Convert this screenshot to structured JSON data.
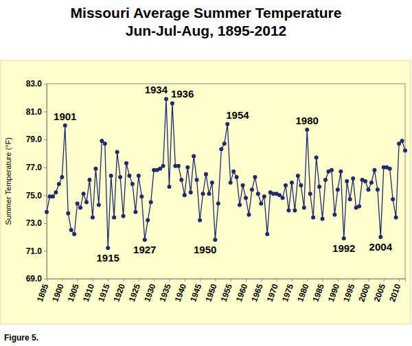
{
  "chart_data": {
    "type": "line",
    "title": "Missouri Average Summer Temperature",
    "subtitle": "Jun-Jul-Aug, 1895-2012",
    "y_label": "Summer Temperature (°F)",
    "caption": "Figure 5.",
    "color": "#1f2a6e",
    "marker": "circle",
    "grid": false,
    "xlim": [
      1895,
      2012
    ],
    "ylim": [
      69,
      83
    ],
    "xticks": [
      1895,
      1900,
      1905,
      1910,
      1915,
      1920,
      1925,
      1930,
      1935,
      1940,
      1945,
      1950,
      1955,
      1960,
      1965,
      1970,
      1975,
      1980,
      1985,
      1990,
      1995,
      2000,
      2005,
      2010
    ],
    "yticks": [
      {
        "value": 69,
        "label": "69.0"
      },
      {
        "value": 71,
        "label": "71.0"
      },
      {
        "value": 73,
        "label": "73.0"
      },
      {
        "value": 75,
        "label": "75.0"
      },
      {
        "value": 77,
        "label": "77.0"
      },
      {
        "value": 79,
        "label": "79.0"
      },
      {
        "value": 81,
        "label": "81.0"
      },
      {
        "value": 83,
        "label": "83.0"
      }
    ],
    "x": [
      1895,
      1896,
      1897,
      1898,
      1899,
      1900,
      1901,
      1902,
      1903,
      1904,
      1905,
      1906,
      1907,
      1908,
      1909,
      1910,
      1911,
      1912,
      1913,
      1914,
      1915,
      1916,
      1917,
      1918,
      1919,
      1920,
      1921,
      1922,
      1923,
      1924,
      1925,
      1926,
      1927,
      1928,
      1929,
      1930,
      1931,
      1932,
      1933,
      1934,
      1935,
      1936,
      1937,
      1938,
      1939,
      1940,
      1941,
      1942,
      1943,
      1944,
      1945,
      1946,
      1947,
      1948,
      1949,
      1950,
      1951,
      1952,
      1953,
      1954,
      1955,
      1956,
      1957,
      1958,
      1959,
      1960,
      1961,
      1962,
      1963,
      1964,
      1965,
      1966,
      1967,
      1968,
      1969,
      1970,
      1971,
      1972,
      1973,
      1974,
      1975,
      1976,
      1977,
      1978,
      1979,
      1980,
      1981,
      1982,
      1983,
      1984,
      1985,
      1986,
      1987,
      1988,
      1989,
      1990,
      1991,
      1992,
      1993,
      1994,
      1995,
      1996,
      1997,
      1998,
      1999,
      2000,
      2001,
      2002,
      2003,
      2004,
      2005,
      2006,
      2007,
      2008,
      2009,
      2010,
      2011,
      2012
    ],
    "values": [
      73.8,
      74.9,
      74.9,
      75.2,
      75.8,
      76.3,
      80.0,
      73.7,
      72.5,
      72.2,
      74.4,
      74.1,
      75.1,
      74.5,
      76.1,
      73.4,
      76.9,
      74.3,
      78.9,
      78.7,
      71.2,
      76.4,
      73.4,
      78.1,
      76.3,
      73.5,
      77.3,
      76.4,
      75.8,
      73.8,
      76.4,
      74.9,
      71.8,
      73.2,
      74.5,
      76.8,
      76.8,
      76.9,
      77.1,
      81.9,
      75.6,
      81.6,
      77.1,
      77.1,
      76.1,
      75.0,
      77.0,
      75.2,
      77.8,
      76.1,
      73.2,
      75.1,
      76.5,
      75.1,
      75.9,
      71.8,
      74.4,
      78.3,
      78.7,
      80.1,
      75.9,
      76.7,
      76.3,
      74.3,
      75.7,
      74.8,
      73.6,
      75.4,
      76.3,
      75.1,
      74.4,
      74.9,
      72.2,
      75.2,
      75.1,
      75.1,
      75.0,
      74.8,
      75.7,
      73.9,
      75.9,
      73.9,
      76.4,
      75.7,
      74.1,
      79.7,
      75.1,
      73.4,
      77.7,
      75.6,
      73.3,
      76.1,
      76.7,
      76.8,
      73.6,
      75.4,
      76.7,
      71.9,
      76.0,
      74.7,
      76.2,
      74.1,
      74.2,
      76.1,
      76.0,
      75.4,
      75.9,
      76.8,
      75.4,
      72.0,
      77.0,
      77.0,
      76.9,
      74.7,
      73.4,
      78.7,
      78.9,
      78.2
    ],
    "annotations": [
      {
        "text": "1901",
        "x": 1901
      },
      {
        "text": "1915",
        "x": 1915
      },
      {
        "text": "1927",
        "x": 1927
      },
      {
        "text": "1934",
        "x": 1934
      },
      {
        "text": "1936",
        "x": 1936
      },
      {
        "text": "1950",
        "x": 1950
      },
      {
        "text": "1954",
        "x": 1954
      },
      {
        "text": "1980",
        "x": 1980
      },
      {
        "text": "1992",
        "x": 1992
      },
      {
        "text": "2004",
        "x": 2004
      }
    ]
  }
}
